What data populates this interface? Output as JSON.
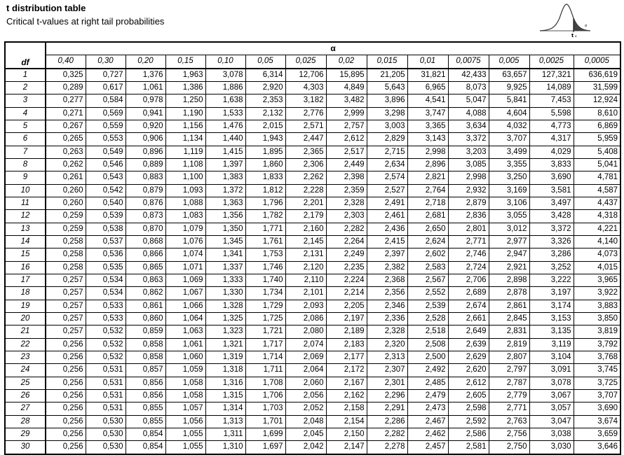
{
  "title": "t distribution table",
  "subtitle": "Critical t-values at right tail probabilities",
  "figure": {
    "label": "t",
    "sublabel": "α",
    "arrow_label": "α"
  },
  "table": {
    "df_header": "df",
    "alpha_header": "α",
    "alpha_values": [
      "0,40",
      "0,30",
      "0,20",
      "0,15",
      "0,10",
      "0,05",
      "0,025",
      "0,02",
      "0,015",
      "0,01",
      "0,0075",
      "0,005",
      "0,0025",
      "0,0005"
    ],
    "rows": [
      {
        "df": "1",
        "v": [
          "0,325",
          "0,727",
          "1,376",
          "1,963",
          "3,078",
          "6,314",
          "12,706",
          "15,895",
          "21,205",
          "31,821",
          "42,433",
          "63,657",
          "127,321",
          "636,619"
        ]
      },
      {
        "df": "2",
        "v": [
          "0,289",
          "0,617",
          "1,061",
          "1,386",
          "1,886",
          "2,920",
          "4,303",
          "4,849",
          "5,643",
          "6,965",
          "8,073",
          "9,925",
          "14,089",
          "31,599"
        ]
      },
      {
        "df": "3",
        "v": [
          "0,277",
          "0,584",
          "0,978",
          "1,250",
          "1,638",
          "2,353",
          "3,182",
          "3,482",
          "3,896",
          "4,541",
          "5,047",
          "5,841",
          "7,453",
          "12,924"
        ]
      },
      {
        "df": "4",
        "v": [
          "0,271",
          "0,569",
          "0,941",
          "1,190",
          "1,533",
          "2,132",
          "2,776",
          "2,999",
          "3,298",
          "3,747",
          "4,088",
          "4,604",
          "5,598",
          "8,610"
        ]
      },
      {
        "df": "5",
        "v": [
          "0,267",
          "0,559",
          "0,920",
          "1,156",
          "1,476",
          "2,015",
          "2,571",
          "2,757",
          "3,003",
          "3,365",
          "3,634",
          "4,032",
          "4,773",
          "6,869"
        ]
      },
      {
        "df": "6",
        "v": [
          "0,265",
          "0,553",
          "0,906",
          "1,134",
          "1,440",
          "1,943",
          "2,447",
          "2,612",
          "2,829",
          "3,143",
          "3,372",
          "3,707",
          "4,317",
          "5,959"
        ]
      },
      {
        "df": "7",
        "v": [
          "0,263",
          "0,549",
          "0,896",
          "1,119",
          "1,415",
          "1,895",
          "2,365",
          "2,517",
          "2,715",
          "2,998",
          "3,203",
          "3,499",
          "4,029",
          "5,408"
        ]
      },
      {
        "df": "8",
        "v": [
          "0,262",
          "0,546",
          "0,889",
          "1,108",
          "1,397",
          "1,860",
          "2,306",
          "2,449",
          "2,634",
          "2,896",
          "3,085",
          "3,355",
          "3,833",
          "5,041"
        ]
      },
      {
        "df": "9",
        "v": [
          "0,261",
          "0,543",
          "0,883",
          "1,100",
          "1,383",
          "1,833",
          "2,262",
          "2,398",
          "2,574",
          "2,821",
          "2,998",
          "3,250",
          "3,690",
          "4,781"
        ]
      },
      {
        "df": "10",
        "v": [
          "0,260",
          "0,542",
          "0,879",
          "1,093",
          "1,372",
          "1,812",
          "2,228",
          "2,359",
          "2,527",
          "2,764",
          "2,932",
          "3,169",
          "3,581",
          "4,587"
        ]
      },
      {
        "df": "11",
        "v": [
          "0,260",
          "0,540",
          "0,876",
          "1,088",
          "1,363",
          "1,796",
          "2,201",
          "2,328",
          "2,491",
          "2,718",
          "2,879",
          "3,106",
          "3,497",
          "4,437"
        ]
      },
      {
        "df": "12",
        "v": [
          "0,259",
          "0,539",
          "0,873",
          "1,083",
          "1,356",
          "1,782",
          "2,179",
          "2,303",
          "2,461",
          "2,681",
          "2,836",
          "3,055",
          "3,428",
          "4,318"
        ]
      },
      {
        "df": "13",
        "v": [
          "0,259",
          "0,538",
          "0,870",
          "1,079",
          "1,350",
          "1,771",
          "2,160",
          "2,282",
          "2,436",
          "2,650",
          "2,801",
          "3,012",
          "3,372",
          "4,221"
        ]
      },
      {
        "df": "14",
        "v": [
          "0,258",
          "0,537",
          "0,868",
          "1,076",
          "1,345",
          "1,761",
          "2,145",
          "2,264",
          "2,415",
          "2,624",
          "2,771",
          "2,977",
          "3,326",
          "4,140"
        ]
      },
      {
        "df": "15",
        "v": [
          "0,258",
          "0,536",
          "0,866",
          "1,074",
          "1,341",
          "1,753",
          "2,131",
          "2,249",
          "2,397",
          "2,602",
          "2,746",
          "2,947",
          "3,286",
          "4,073"
        ]
      },
      {
        "df": "16",
        "v": [
          "0,258",
          "0,535",
          "0,865",
          "1,071",
          "1,337",
          "1,746",
          "2,120",
          "2,235",
          "2,382",
          "2,583",
          "2,724",
          "2,921",
          "3,252",
          "4,015"
        ]
      },
      {
        "df": "17",
        "v": [
          "0,257",
          "0,534",
          "0,863",
          "1,069",
          "1,333",
          "1,740",
          "2,110",
          "2,224",
          "2,368",
          "2,567",
          "2,706",
          "2,898",
          "3,222",
          "3,965"
        ]
      },
      {
        "df": "18",
        "v": [
          "0,257",
          "0,534",
          "0,862",
          "1,067",
          "1,330",
          "1,734",
          "2,101",
          "2,214",
          "2,356",
          "2,552",
          "2,689",
          "2,878",
          "3,197",
          "3,922"
        ]
      },
      {
        "df": "19",
        "v": [
          "0,257",
          "0,533",
          "0,861",
          "1,066",
          "1,328",
          "1,729",
          "2,093",
          "2,205",
          "2,346",
          "2,539",
          "2,674",
          "2,861",
          "3,174",
          "3,883"
        ]
      },
      {
        "df": "20",
        "v": [
          "0,257",
          "0,533",
          "0,860",
          "1,064",
          "1,325",
          "1,725",
          "2,086",
          "2,197",
          "2,336",
          "2,528",
          "2,661",
          "2,845",
          "3,153",
          "3,850"
        ]
      },
      {
        "df": "21",
        "v": [
          "0,257",
          "0,532",
          "0,859",
          "1,063",
          "1,323",
          "1,721",
          "2,080",
          "2,189",
          "2,328",
          "2,518",
          "2,649",
          "2,831",
          "3,135",
          "3,819"
        ]
      },
      {
        "df": "22",
        "v": [
          "0,256",
          "0,532",
          "0,858",
          "1,061",
          "1,321",
          "1,717",
          "2,074",
          "2,183",
          "2,320",
          "2,508",
          "2,639",
          "2,819",
          "3,119",
          "3,792"
        ]
      },
      {
        "df": "23",
        "v": [
          "0,256",
          "0,532",
          "0,858",
          "1,060",
          "1,319",
          "1,714",
          "2,069",
          "2,177",
          "2,313",
          "2,500",
          "2,629",
          "2,807",
          "3,104",
          "3,768"
        ]
      },
      {
        "df": "24",
        "v": [
          "0,256",
          "0,531",
          "0,857",
          "1,059",
          "1,318",
          "1,711",
          "2,064",
          "2,172",
          "2,307",
          "2,492",
          "2,620",
          "2,797",
          "3,091",
          "3,745"
        ]
      },
      {
        "df": "25",
        "v": [
          "0,256",
          "0,531",
          "0,856",
          "1,058",
          "1,316",
          "1,708",
          "2,060",
          "2,167",
          "2,301",
          "2,485",
          "2,612",
          "2,787",
          "3,078",
          "3,725"
        ]
      },
      {
        "df": "26",
        "v": [
          "0,256",
          "0,531",
          "0,856",
          "1,058",
          "1,315",
          "1,706",
          "2,056",
          "2,162",
          "2,296",
          "2,479",
          "2,605",
          "2,779",
          "3,067",
          "3,707"
        ]
      },
      {
        "df": "27",
        "v": [
          "0,256",
          "0,531",
          "0,855",
          "1,057",
          "1,314",
          "1,703",
          "2,052",
          "2,158",
          "2,291",
          "2,473",
          "2,598",
          "2,771",
          "3,057",
          "3,690"
        ]
      },
      {
        "df": "28",
        "v": [
          "0,256",
          "0,530",
          "0,855",
          "1,056",
          "1,313",
          "1,701",
          "2,048",
          "2,154",
          "2,286",
          "2,467",
          "2,592",
          "2,763",
          "3,047",
          "3,674"
        ]
      },
      {
        "df": "29",
        "v": [
          "0,256",
          "0,530",
          "0,854",
          "1,055",
          "1,311",
          "1,699",
          "2,045",
          "2,150",
          "2,282",
          "2,462",
          "2,586",
          "2,756",
          "3,038",
          "3,659"
        ]
      },
      {
        "df": "30",
        "v": [
          "0,256",
          "0,530",
          "0,854",
          "1,055",
          "1,310",
          "1,697",
          "2,042",
          "2,147",
          "2,278",
          "2,457",
          "2,581",
          "2,750",
          "3,030",
          "3,646"
        ]
      }
    ]
  }
}
